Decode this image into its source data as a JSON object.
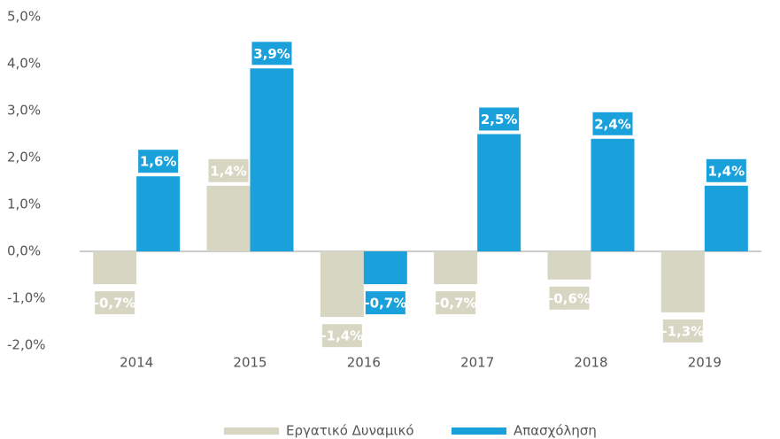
{
  "chart_data": {
    "type": "bar",
    "categories": [
      "2014",
      "2015",
      "2016",
      "2017",
      "2018",
      "2019"
    ],
    "series": [
      {
        "name": "Εργατικό Δυναμικό",
        "color": "#d7d6c3",
        "values": [
          -0.7,
          1.4,
          -1.4,
          -0.7,
          -0.6,
          -1.3
        ],
        "value_labels": [
          "-0,7%",
          "1,4%",
          "-1,4%",
          "-0,7%",
          "-0,6%",
          "-1,3%"
        ]
      },
      {
        "name": "Απασχόληση",
        "color": "#1aa1dc",
        "values": [
          1.6,
          3.9,
          -0.7,
          2.5,
          2.4,
          1.4
        ],
        "value_labels": [
          "1,6%",
          "3,9%",
          "-0,7%",
          "2,5%",
          "2,4%",
          "1,4%"
        ]
      }
    ],
    "ylim": [
      -2,
      5
    ],
    "yticks": [
      {
        "value": -2,
        "label": "-2,0%"
      },
      {
        "value": -1,
        "label": "-1,0%"
      },
      {
        "value": 0,
        "label": "0,0%"
      },
      {
        "value": 1,
        "label": "1,0%"
      },
      {
        "value": 2,
        "label": "2,0%"
      },
      {
        "value": 3,
        "label": "3,0%"
      },
      {
        "value": 4,
        "label": "4,0%"
      },
      {
        "value": 5,
        "label": "5,0%"
      }
    ],
    "grid": false,
    "legend": "bottom"
  }
}
